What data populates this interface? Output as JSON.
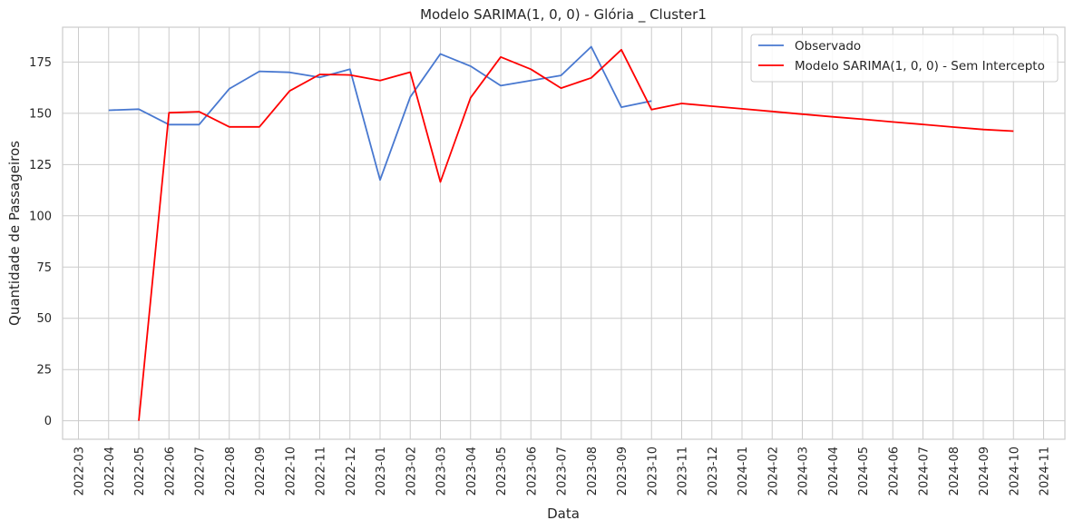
{
  "chart_data": {
    "type": "line",
    "title": "Modelo SARIMA(1, 0, 0) - Glória _ Cluster1",
    "xlabel": "Data",
    "ylabel": "Quantidade de Passageiros",
    "x_ticks": [
      "2022-03",
      "2022-04",
      "2022-05",
      "2022-06",
      "2022-07",
      "2022-08",
      "2022-09",
      "2022-10",
      "2022-11",
      "2022-12",
      "2023-01",
      "2023-02",
      "2023-03",
      "2023-04",
      "2023-05",
      "2023-06",
      "2023-07",
      "2023-08",
      "2023-09",
      "2023-10",
      "2023-11",
      "2023-12",
      "2024-01",
      "2024-02",
      "2024-03",
      "2024-04",
      "2024-05",
      "2024-06",
      "2024-07",
      "2024-08",
      "2024-09",
      "2024-10",
      "2024-11"
    ],
    "y_ticks": [
      0,
      25,
      50,
      75,
      100,
      125,
      150,
      175
    ],
    "xlim": [
      "2022-03",
      "2024-11"
    ],
    "ylim": [
      -9,
      192
    ],
    "grid": true,
    "legend_position": "top-right",
    "series": [
      {
        "name": "Observado",
        "color": "#4878d0",
        "x": [
          "2022-04",
          "2022-05",
          "2022-06",
          "2022-07",
          "2022-08",
          "2022-09",
          "2022-10",
          "2022-11",
          "2022-12",
          "2023-01",
          "2023-02",
          "2023-03",
          "2023-04",
          "2023-05",
          "2023-06",
          "2023-07",
          "2023-08",
          "2023-09",
          "2023-10"
        ],
        "values": [
          151.5,
          152,
          144.5,
          144.5,
          162,
          170.5,
          170,
          167.5,
          171.5,
          117.5,
          158,
          179,
          173,
          163.5,
          166,
          168.5,
          182.5,
          153,
          156
        ]
      },
      {
        "name": "Modelo SARIMA(1, 0, 0) - Sem Intercepto",
        "color": "#ff0000",
        "x": [
          "2022-05",
          "2022-06",
          "2022-07",
          "2022-08",
          "2022-09",
          "2022-10",
          "2022-11",
          "2022-12",
          "2023-01",
          "2023-02",
          "2023-03",
          "2023-04",
          "2023-05",
          "2023-06",
          "2023-07",
          "2023-08",
          "2023-09",
          "2023-10",
          "2023-11",
          "2023-12",
          "2024-01",
          "2024-02",
          "2024-03",
          "2024-04",
          "2024-05",
          "2024-06",
          "2024-07",
          "2024-08",
          "2024-09",
          "2024-10"
        ],
        "values": [
          0,
          150.3,
          150.8,
          143.4,
          143.4,
          160.9,
          169,
          168.7,
          166,
          170.1,
          116.5,
          157.6,
          177.5,
          171.5,
          162.3,
          167.3,
          181,
          151.8,
          154.8,
          153.5,
          152.2,
          150.9,
          149.6,
          148.3,
          147.1,
          145.8,
          144.6,
          143.3,
          142.1,
          141.3
        ]
      }
    ]
  }
}
